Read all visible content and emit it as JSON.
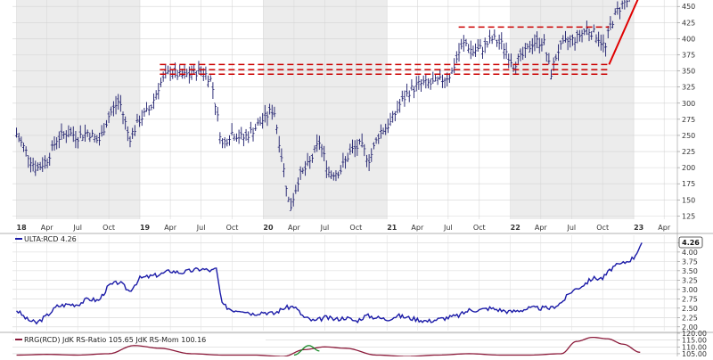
{
  "chart_data": [
    {
      "type": "bar",
      "style": "ohlc",
      "panel": "price",
      "series": [
        {
          "anchors": [
            [
              "2018-01-01",
              252
            ],
            [
              "2018-02-01",
              222
            ],
            [
              "2018-03-01",
              198
            ],
            [
              "2018-04-01",
              212
            ],
            [
              "2018-05-01",
              245
            ],
            [
              "2018-06-01",
              255
            ],
            [
              "2018-07-01",
              248
            ],
            [
              "2018-08-01",
              255
            ],
            [
              "2018-09-01",
              240
            ],
            [
              "2018-10-01",
              280
            ],
            [
              "2018-11-01",
              305
            ],
            [
              "2018-12-01",
              245
            ],
            [
              "2019-01-01",
              275
            ],
            [
              "2019-02-01",
              292
            ],
            [
              "2019-03-01",
              330
            ],
            [
              "2019-04-01",
              350
            ],
            [
              "2019-05-01",
              342
            ],
            [
              "2019-06-01",
              345
            ],
            [
              "2019-07-01",
              352
            ],
            [
              "2019-08-01",
              335
            ],
            [
              "2019-09-01",
              235
            ],
            [
              "2019-10-01",
              255
            ],
            [
              "2019-11-01",
              245
            ],
            [
              "2019-12-01",
              258
            ],
            [
              "2020-01-01",
              275
            ],
            [
              "2020-02-01",
              292
            ],
            [
              "2020-03-01",
              200
            ],
            [
              "2020-03-20",
              135
            ],
            [
              "2020-04-15",
              185
            ],
            [
              "2020-05-15",
              205
            ],
            [
              "2020-06-15",
              240
            ],
            [
              "2020-07-15",
              190
            ],
            [
              "2020-08-15",
              195
            ],
            [
              "2020-09-15",
              225
            ],
            [
              "2020-10-15",
              235
            ],
            [
              "2020-11-10",
              212
            ],
            [
              "2020-12-10",
              255
            ],
            [
              "2021-01-10",
              268
            ],
            [
              "2021-02-10",
              300
            ],
            [
              "2021-03-10",
              320
            ],
            [
              "2021-04-10",
              330
            ],
            [
              "2021-05-10",
              330
            ],
            [
              "2021-06-10",
              335
            ],
            [
              "2021-07-10",
              345
            ],
            [
              "2021-08-01",
              378
            ],
            [
              "2021-08-20",
              395
            ],
            [
              "2021-09-10",
              380
            ],
            [
              "2021-10-10",
              385
            ],
            [
              "2021-11-10",
              400
            ],
            [
              "2021-12-10",
              390
            ],
            [
              "2022-01-10",
              360
            ],
            [
              "2022-02-10",
              375
            ],
            [
              "2022-03-10",
              395
            ],
            [
              "2022-04-10",
              395
            ],
            [
              "2022-05-01",
              345
            ],
            [
              "2022-05-20",
              380
            ],
            [
              "2022-06-15",
              395
            ],
            [
              "2022-07-15",
              400
            ],
            [
              "2022-08-15",
              415
            ],
            [
              "2022-09-15",
              405
            ],
            [
              "2022-10-10",
              385
            ],
            [
              "2022-10-20",
              415
            ],
            [
              "2022-11-10",
              440
            ],
            [
              "2022-12-01",
              455
            ],
            [
              "2022-12-20",
              460
            ]
          ]
        }
      ],
      "ylim": [
        120,
        460
      ],
      "yticks": [
        125,
        150,
        175,
        200,
        225,
        250,
        275,
        300,
        325,
        350,
        375,
        400,
        425,
        450
      ],
      "xticks": [
        {
          "label": "18",
          "date": "2018-01-01",
          "bold": true
        },
        {
          "label": "Apr",
          "date": "2018-04-01"
        },
        {
          "label": "Jul",
          "date": "2018-07-01"
        },
        {
          "label": "Oct",
          "date": "2018-10-01"
        },
        {
          "label": "19",
          "date": "2019-01-01",
          "bold": true
        },
        {
          "label": "Apr",
          "date": "2019-04-01"
        },
        {
          "label": "Jul",
          "date": "2019-07-01"
        },
        {
          "label": "Oct",
          "date": "2019-10-01"
        },
        {
          "label": "20",
          "date": "2020-01-01",
          "bold": true
        },
        {
          "label": "Apr",
          "date": "2020-04-01"
        },
        {
          "label": "Jul",
          "date": "2020-07-01"
        },
        {
          "label": "Oct",
          "date": "2020-10-01"
        },
        {
          "label": "21",
          "date": "2021-01-01",
          "bold": true
        },
        {
          "label": "Apr",
          "date": "2021-04-01"
        },
        {
          "label": "Jul",
          "date": "2021-07-01"
        },
        {
          "label": "Oct",
          "date": "2021-10-01"
        },
        {
          "label": "22",
          "date": "2022-01-01",
          "bold": true
        },
        {
          "label": "Apr",
          "date": "2022-04-01"
        },
        {
          "label": "Jul",
          "date": "2022-07-01"
        },
        {
          "label": "Oct",
          "date": "2022-10-01"
        },
        {
          "label": "23",
          "date": "2023-01-01",
          "bold": true
        },
        {
          "label": "Apr",
          "date": "2023-04-01"
        }
      ],
      "shaded_years": [
        [
          "2018-01-01",
          "2019-01-01"
        ],
        [
          "2020-01-01",
          "2021-01-01"
        ],
        [
          "2022-01-01",
          "2023-01-01"
        ]
      ],
      "annotations": [
        {
          "kind": "dashed-hline",
          "y": 360,
          "from": "2019-03-01",
          "to": "2022-10-20",
          "color": "#cc0000"
        },
        {
          "kind": "dashed-hline",
          "y": 352,
          "from": "2019-03-01",
          "to": "2022-10-20",
          "color": "#cc0000"
        },
        {
          "kind": "dashed-hline",
          "y": 345,
          "from": "2019-03-01",
          "to": "2022-10-20",
          "color": "#cc0000"
        },
        {
          "kind": "dashed-hline",
          "y": 418,
          "from": "2021-08-01",
          "to": "2022-10-20",
          "color": "#cc0000"
        },
        {
          "kind": "trendline",
          "from": [
            "2022-10-20",
            360
          ],
          "to": [
            "2023-01-25",
            475
          ],
          "color": "#e00000"
        }
      ]
    },
    {
      "type": "line",
      "panel": "relative-strength",
      "legend": "ULTA:RCD 4.26",
      "last_value_label": "4.26",
      "color": "#1c1ca8",
      "x": [
        "2018-01-01",
        "2018-02-01",
        "2018-03-01",
        "2018-04-01",
        "2018-05-01",
        "2018-06-01",
        "2018-07-01",
        "2018-08-01",
        "2018-09-01",
        "2018-10-01",
        "2018-11-01",
        "2018-12-01",
        "2019-01-01",
        "2019-02-01",
        "2019-03-01",
        "2019-04-01",
        "2019-05-01",
        "2019-06-01",
        "2019-07-01",
        "2019-08-01",
        "2019-08-15",
        "2019-09-01",
        "2019-10-01",
        "2019-11-01",
        "2019-12-01",
        "2020-01-01",
        "2020-02-01",
        "2020-03-01",
        "2020-04-01",
        "2020-05-01",
        "2020-06-01",
        "2020-07-01",
        "2020-08-01",
        "2020-09-01",
        "2020-10-01",
        "2020-11-01",
        "2020-12-01",
        "2021-01-01",
        "2021-02-01",
        "2021-03-01",
        "2021-04-01",
        "2021-05-01",
        "2021-06-01",
        "2021-07-01",
        "2021-08-01",
        "2021-09-01",
        "2021-10-01",
        "2021-11-01",
        "2021-12-01",
        "2022-01-01",
        "2022-02-01",
        "2022-03-01",
        "2022-04-01",
        "2022-05-01",
        "2022-06-01",
        "2022-07-01",
        "2022-08-01",
        "2022-09-01",
        "2022-10-01",
        "2022-11-01",
        "2022-12-01",
        "2023-01-01",
        "2023-01-25"
      ],
      "y": [
        2.45,
        2.2,
        2.1,
        2.3,
        2.55,
        2.6,
        2.6,
        2.75,
        2.7,
        3.1,
        3.2,
        2.95,
        3.3,
        3.35,
        3.4,
        3.5,
        3.45,
        3.5,
        3.55,
        3.5,
        3.55,
        2.6,
        2.45,
        2.45,
        2.35,
        2.4,
        2.35,
        2.5,
        2.55,
        2.25,
        2.15,
        2.25,
        2.2,
        2.25,
        2.15,
        2.3,
        2.25,
        2.2,
        2.3,
        2.25,
        2.2,
        2.15,
        2.2,
        2.25,
        2.3,
        2.45,
        2.45,
        2.5,
        2.45,
        2.4,
        2.45,
        2.5,
        2.5,
        2.5,
        2.65,
        2.95,
        3.1,
        3.3,
        3.3,
        3.6,
        3.7,
        3.85,
        4.25
      ],
      "ylim": [
        1.9,
        4.45
      ],
      "yticks": [
        2.0,
        2.25,
        2.5,
        2.75,
        3.0,
        3.25,
        3.5,
        3.75,
        4.0,
        4.25
      ]
    },
    {
      "type": "line",
      "panel": "rrg",
      "legend": "RRG(RCD) JdK RS-Ratio 105.65 JdK RS-Mom 100.16",
      "ylim": [
        103,
        120
      ],
      "yticks": [
        105,
        110,
        115,
        120
      ],
      "series": [
        {
          "name": "JdK RS-Ratio",
          "color": "#8b1a3a",
          "x": [
            "2018-01-01",
            "2018-04-01",
            "2018-07-01",
            "2018-10-01",
            "2018-12-15",
            "2019-03-01",
            "2019-06-01",
            "2019-09-01",
            "2019-12-01",
            "2020-03-01",
            "2020-05-01",
            "2020-07-01",
            "2020-09-01",
            "2020-12-01",
            "2021-03-01",
            "2021-06-01",
            "2021-09-01",
            "2021-12-01",
            "2022-03-01",
            "2022-06-01",
            "2022-07-15",
            "2022-09-01",
            "2022-10-15",
            "2022-12-01",
            "2023-01-20"
          ],
          "y": [
            104,
            104.5,
            104,
            105,
            111,
            109,
            105,
            104,
            104,
            103,
            108,
            110,
            109,
            104,
            103,
            104,
            105,
            104,
            104,
            105,
            114,
            117,
            116,
            112,
            106
          ]
        },
        {
          "name": "JdK RS-Mom",
          "color": "#1a8a2a",
          "x": [
            "2020-04-01",
            "2020-05-15",
            "2020-06-15"
          ],
          "y": [
            104,
            111,
            107
          ]
        }
      ]
    }
  ]
}
